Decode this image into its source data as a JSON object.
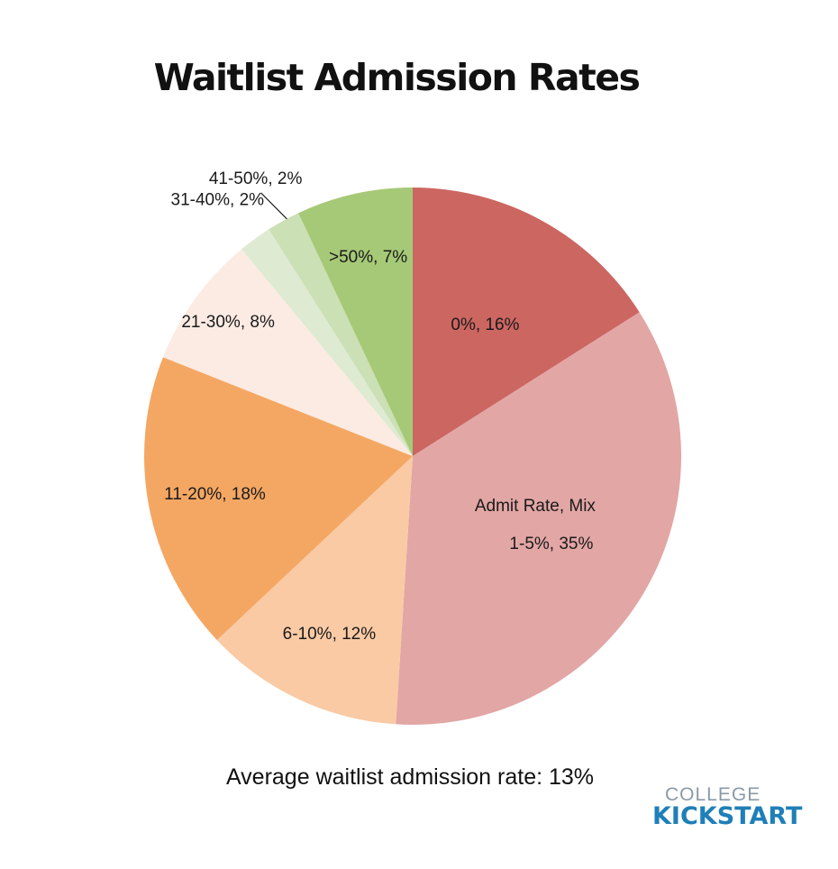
{
  "title": "Waitlist Admission Rates",
  "chart_data": {
    "type": "pie",
    "title": "Waitlist Admission Rates",
    "legend_title": "Admit Rate, Mix",
    "slices": [
      {
        "label": "0%, 16%",
        "category": "0%",
        "value": 16,
        "color": "#cc6661"
      },
      {
        "label": "1-5%, 35%",
        "category": "1-5%",
        "value": 35,
        "color": "#e2a6a5"
      },
      {
        "label": "6-10%, 12%",
        "category": "6-10%",
        "value": 12,
        "color": "#f9caa4"
      },
      {
        "label": "11-20%, 18%",
        "category": "11-20%",
        "value": 18,
        "color": "#f4a763"
      },
      {
        "label": "21-30%, 8%",
        "category": "21-30%",
        "value": 8,
        "color": "#fcebe3"
      },
      {
        "label": "31-40%, 2%",
        "category": "31-40%",
        "value": 2,
        "color": "#deead2"
      },
      {
        "label": "41-50%, 2%",
        "category": "41-50%",
        "value": 2,
        "color": "#cbe0b5"
      },
      {
        "label": ">50%, 7%",
        "category": ">50%",
        "value": 7,
        "color": "#a6c977"
      }
    ]
  },
  "footnote": "Average waitlist admission rate: 13%",
  "logo": {
    "top": "COLLEGE",
    "bottom": "KICKSTART"
  }
}
